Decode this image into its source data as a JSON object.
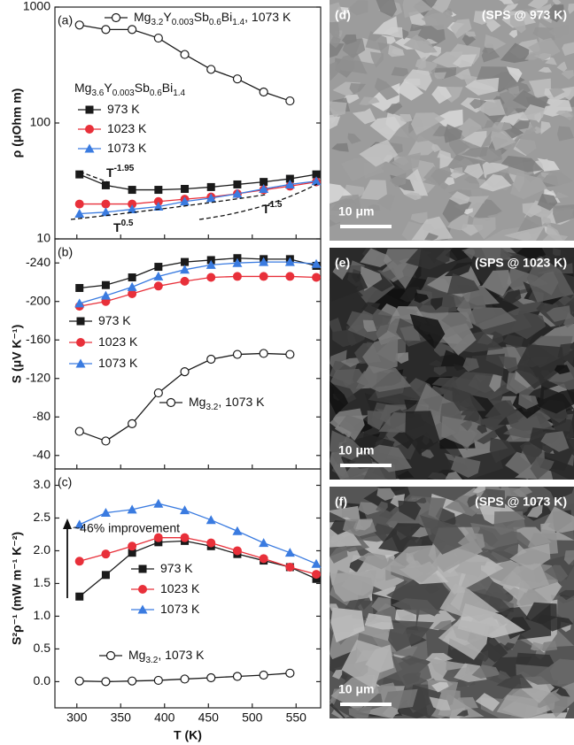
{
  "chart_data": [
    {
      "type": "line",
      "panel_label": "(a)",
      "ylabel": "ρ (μOhm m)",
      "ylog": true,
      "ylim": [
        10,
        1000
      ],
      "yticks": [
        10,
        100,
        1000
      ],
      "xlim": [
        275,
        578
      ],
      "legend_title": "Mg3.6Y0.003Sb0.6Bi1.4",
      "annotations": [
        {
          "base": "T",
          "exp": "-1.95"
        },
        {
          "base": "T",
          "exp": "1.5"
        },
        {
          "base": "T",
          "exp": "0.5"
        }
      ],
      "series": [
        {
          "name": "Mg3.2Y0.003Sb0.6Bi1.4, 1073 K",
          "color": "#1a1a1a",
          "marker": "open-circle",
          "x": [
            303,
            333,
            363,
            393,
            423,
            453,
            483,
            513,
            543
          ],
          "values": [
            700,
            640,
            640,
            540,
            390,
            290,
            240,
            185,
            155
          ]
        },
        {
          "name": "973 K",
          "color": "#1a1a1a",
          "marker": "square",
          "x": [
            303,
            333,
            363,
            393,
            423,
            453,
            483,
            513,
            543,
            573
          ],
          "values": [
            36,
            29,
            26.5,
            26.5,
            27,
            28,
            29.5,
            31,
            33,
            36
          ]
        },
        {
          "name": "1023 K",
          "color": "#e8303a",
          "marker": "circle",
          "x": [
            303,
            333,
            363,
            393,
            423,
            453,
            483,
            513,
            543,
            573
          ],
          "values": [
            20,
            20,
            20,
            21,
            22,
            23,
            24.5,
            26.5,
            28.5,
            31
          ]
        },
        {
          "name": "1073 K",
          "color": "#3a7be0",
          "marker": "triangle",
          "x": [
            303,
            333,
            363,
            393,
            423,
            453,
            483,
            513,
            543,
            573
          ],
          "values": [
            16.5,
            17,
            18,
            19,
            21,
            22.5,
            24.5,
            27,
            29.5,
            31.5
          ]
        }
      ]
    },
    {
      "type": "line",
      "panel_label": "(b)",
      "ylabel": "S (μV K⁻¹)",
      "yreversed": true,
      "ylim": [
        -265,
        -26
      ],
      "yticks": [
        -240,
        -200,
        -160,
        -120,
        -80,
        -40
      ],
      "xlim": [
        275,
        578
      ],
      "series": [
        {
          "name": "973 K",
          "color": "#1a1a1a",
          "marker": "square",
          "x": [
            303,
            333,
            363,
            393,
            423,
            453,
            483,
            513,
            543,
            573
          ],
          "values": [
            -214,
            -217,
            -225,
            -236,
            -241,
            -243,
            -245,
            -244,
            -244,
            -237
          ]
        },
        {
          "name": "1023 K",
          "color": "#e8303a",
          "marker": "circle",
          "x": [
            303,
            333,
            363,
            393,
            423,
            453,
            483,
            513,
            543,
            573
          ],
          "values": [
            -195,
            -200,
            -208,
            -216,
            -221,
            -225,
            -226,
            -226,
            -226,
            -225
          ]
        },
        {
          "name": "1073 K",
          "color": "#3a7be0",
          "marker": "triangle",
          "x": [
            303,
            333,
            363,
            393,
            423,
            453,
            483,
            513,
            543,
            573
          ],
          "values": [
            -198,
            -206,
            -215,
            -226,
            -233,
            -238,
            -240,
            -241,
            -241,
            -239
          ]
        },
        {
          "name": "Mg3.2, 1073 K",
          "color": "#1a1a1a",
          "marker": "open-circle",
          "x": [
            303,
            333,
            363,
            393,
            423,
            453,
            483,
            513,
            543
          ],
          "values": [
            -65,
            -55,
            -73,
            -105,
            -127,
            -140,
            -145,
            -146,
            -145
          ]
        }
      ]
    },
    {
      "type": "line",
      "panel_label": "(c)",
      "ylabel": "S²ρ⁻¹ (mW m⁻¹ K⁻²)",
      "ylim": [
        -0.4,
        3.25
      ],
      "yticks": [
        {
          "value": 0,
          "label": "0.0"
        },
        {
          "value": 0.5,
          "label": "0.5"
        },
        {
          "value": 1,
          "label": "1.0"
        },
        {
          "value": 1.5,
          "label": "1.5"
        },
        {
          "value": 2,
          "label": "2.0"
        },
        {
          "value": 2.5,
          "label": "2.5"
        },
        {
          "value": 3,
          "label": "3.0"
        }
      ],
      "xlim": [
        275,
        578
      ],
      "xticks": [
        300,
        350,
        400,
        450,
        500,
        550
      ],
      "xlabel": "T (K)",
      "annotation": "~46% improvement",
      "series": [
        {
          "name": "973 K",
          "color": "#1a1a1a",
          "marker": "square",
          "x": [
            303,
            333,
            363,
            393,
            423,
            453,
            483,
            513,
            543,
            573
          ],
          "values": [
            1.3,
            1.63,
            1.97,
            2.13,
            2.15,
            2.07,
            1.95,
            1.85,
            1.75,
            1.57
          ]
        },
        {
          "name": "1023 K",
          "color": "#e8303a",
          "marker": "circle",
          "x": [
            303,
            333,
            363,
            393,
            423,
            453,
            483,
            513,
            543,
            573
          ],
          "values": [
            1.84,
            1.95,
            2.07,
            2.2,
            2.2,
            2.12,
            2.0,
            1.88,
            1.75,
            1.64
          ]
        },
        {
          "name": "1073 K",
          "color": "#3a7be0",
          "marker": "triangle",
          "x": [
            303,
            333,
            363,
            393,
            423,
            453,
            483,
            513,
            543,
            573
          ],
          "values": [
            2.4,
            2.58,
            2.63,
            2.72,
            2.62,
            2.47,
            2.3,
            2.12,
            1.97,
            1.8
          ]
        },
        {
          "name": "Mg3.2, 1073 K",
          "color": "#1a1a1a",
          "marker": "open-circle",
          "x": [
            303,
            333,
            363,
            393,
            423,
            453,
            483,
            513,
            543
          ],
          "values": [
            0.01,
            0.0,
            0.01,
            0.02,
            0.04,
            0.06,
            0.08,
            0.1,
            0.13
          ]
        }
      ]
    }
  ],
  "images": [
    {
      "label": "(d)",
      "caption": "(SPS @ 973 K)",
      "scale": "10 μm"
    },
    {
      "label": "(e)",
      "caption": "(SPS @ 1023 K)",
      "scale": "10 μm"
    },
    {
      "label": "(f)",
      "caption": "(SPS @ 1073 K)",
      "scale": "10 μm"
    }
  ]
}
